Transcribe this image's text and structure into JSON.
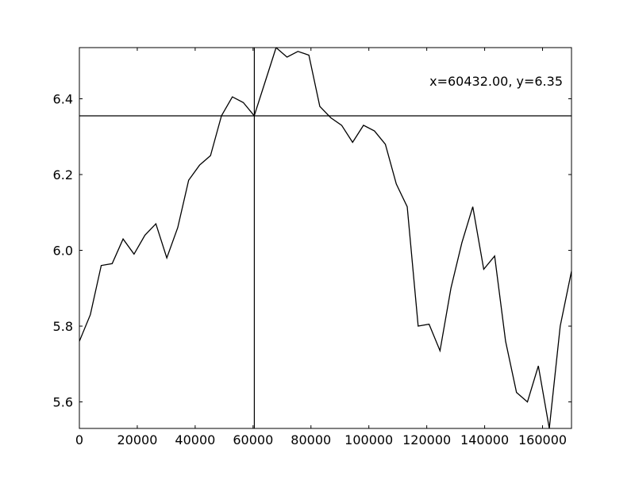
{
  "chart_data": {
    "type": "line",
    "title": "",
    "xlabel": "",
    "ylabel": "",
    "xlim": [
      0,
      170000
    ],
    "ylim": [
      5.53,
      6.535
    ],
    "xticks": [
      0,
      20000,
      40000,
      60000,
      80000,
      100000,
      120000,
      140000,
      160000
    ],
    "yticks": [
      5.6,
      5.8,
      6.0,
      6.2,
      6.4
    ],
    "ytick_labels": [
      "5.6",
      "5.8",
      "6.0",
      "6.2",
      "6.4"
    ],
    "grid": false,
    "line_color": "#000000",
    "cursor": {
      "x": 60432,
      "y": 6.355,
      "readout": "x=60432.00, y=6.35"
    },
    "series": [
      {
        "x": [
          0,
          3780,
          7550,
          11330,
          15100,
          18880,
          22650,
          26430,
          30200,
          33980,
          37750,
          41530,
          45300,
          49080,
          52850,
          56630,
          60400,
          64180,
          67950,
          71730,
          75500,
          79280,
          83050,
          86830,
          90600,
          94380,
          98150,
          101930,
          105700,
          109480,
          113250,
          117030,
          120800,
          124580,
          128350,
          132130,
          135900,
          139680,
          143450,
          147230,
          151000,
          154780,
          158550,
          162330,
          166100,
          170000
        ],
        "y": [
          5.76,
          5.83,
          5.96,
          5.965,
          6.03,
          5.99,
          6.04,
          6.07,
          5.98,
          6.06,
          6.185,
          6.225,
          6.25,
          6.355,
          6.405,
          6.39,
          6.355,
          6.445,
          6.535,
          6.51,
          6.525,
          6.515,
          6.38,
          6.35,
          6.33,
          6.285,
          6.33,
          6.315,
          6.28,
          6.175,
          6.115,
          5.8,
          5.805,
          5.735,
          5.9,
          6.02,
          6.115,
          5.95,
          5.985,
          5.76,
          5.625,
          5.6,
          5.695,
          5.53,
          5.8,
          5.945
        ]
      }
    ]
  }
}
